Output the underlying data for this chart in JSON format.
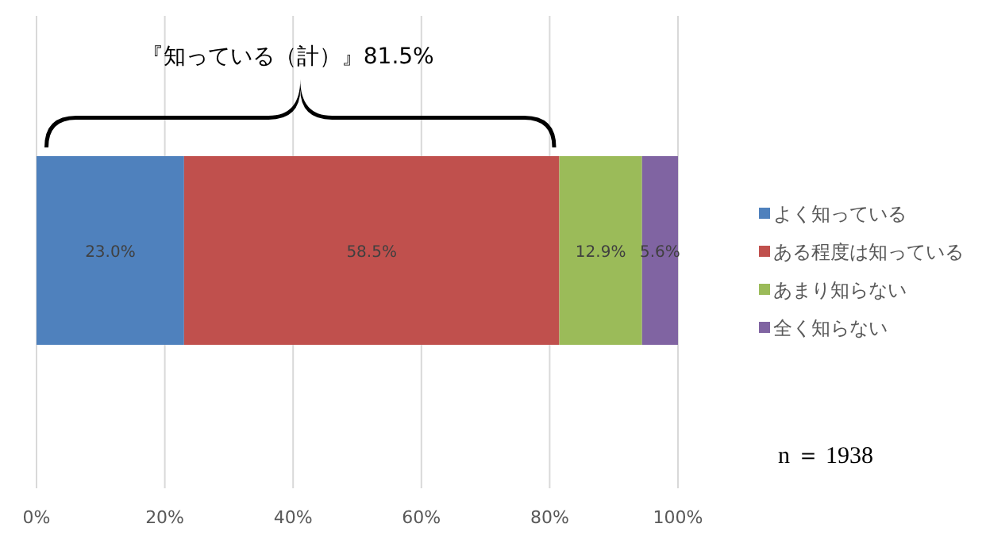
{
  "chart_data": {
    "type": "bar",
    "orientation": "horizontal",
    "stacked": true,
    "categories": [
      null
    ],
    "series": [
      {
        "name": "よく知っている",
        "color": "#4f81bd",
        "values": [
          23.0
        ],
        "value_labels": [
          "23.0%"
        ]
      },
      {
        "name": "ある程度は知っている",
        "color": "#c0504d",
        "values": [
          58.5
        ],
        "value_labels": [
          "58.5%"
        ]
      },
      {
        "name": "あまり知らない",
        "color": "#9bbb59",
        "values": [
          12.9
        ],
        "value_labels": [
          "12.9%"
        ]
      },
      {
        "name": "全く知らない",
        "color": "#8064a2",
        "values": [
          5.6
        ],
        "value_labels": [
          "5.6%"
        ]
      }
    ],
    "xlim": [
      0,
      100
    ],
    "xticks": [
      {
        "value": 0,
        "label": "0%"
      },
      {
        "value": 20,
        "label": "20%"
      },
      {
        "value": 40,
        "label": "40%"
      },
      {
        "value": 60,
        "label": "60%"
      },
      {
        "value": 80,
        "label": "80%"
      },
      {
        "value": 100,
        "label": "100%"
      }
    ],
    "grid": "x",
    "legend": "right",
    "annotations": [
      "『知っている（計）』81.5%",
      "n ＝ 1938"
    ]
  }
}
